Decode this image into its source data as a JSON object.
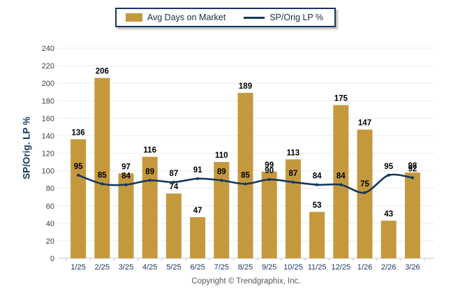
{
  "legend": {
    "items": [
      {
        "label": "Avg Days on Market",
        "type": "bar"
      },
      {
        "label": "SP/Orig LP %",
        "type": "line"
      }
    ]
  },
  "chart_data": {
    "type": "combo",
    "categories": [
      "1/25",
      "2/25",
      "3/25",
      "4/25",
      "5/25",
      "6/25",
      "7/25",
      "8/25",
      "9/25",
      "10/25",
      "11/25",
      "12/25",
      "1/26",
      "2/26",
      "3/26"
    ],
    "series": [
      {
        "name": "Avg Days on Market",
        "type": "bar",
        "color": "#C4993E",
        "values": [
          136,
          206,
          97,
          116,
          74,
          47,
          110,
          189,
          99,
          113,
          53,
          175,
          147,
          43,
          98
        ]
      },
      {
        "name": "SP/Orig LP %",
        "type": "line",
        "color": "#17375D",
        "values": [
          95,
          85,
          84,
          89,
          87,
          91,
          89,
          85,
          90,
          87,
          84,
          84,
          75,
          95,
          92
        ]
      }
    ],
    "ylabel": "SP/Orig. LP %",
    "ylim": [
      0,
      240
    ],
    "ytick_step": 20,
    "grid": true,
    "legend_position": "top"
  },
  "footer": {
    "copyright": "Copyright © Trendgraphix, Inc."
  },
  "colors": {
    "bar": "#C4993E",
    "line": "#17375D",
    "grid": "#ECECEC",
    "axis": "#C9C9C9",
    "ytick_text": "#3F3F3F",
    "xtick_text": "#1F3864",
    "value_label_text": "#000000",
    "ylabel_text": "#17375D",
    "legend_border": "#17375D",
    "copyright_text": "#595959"
  }
}
